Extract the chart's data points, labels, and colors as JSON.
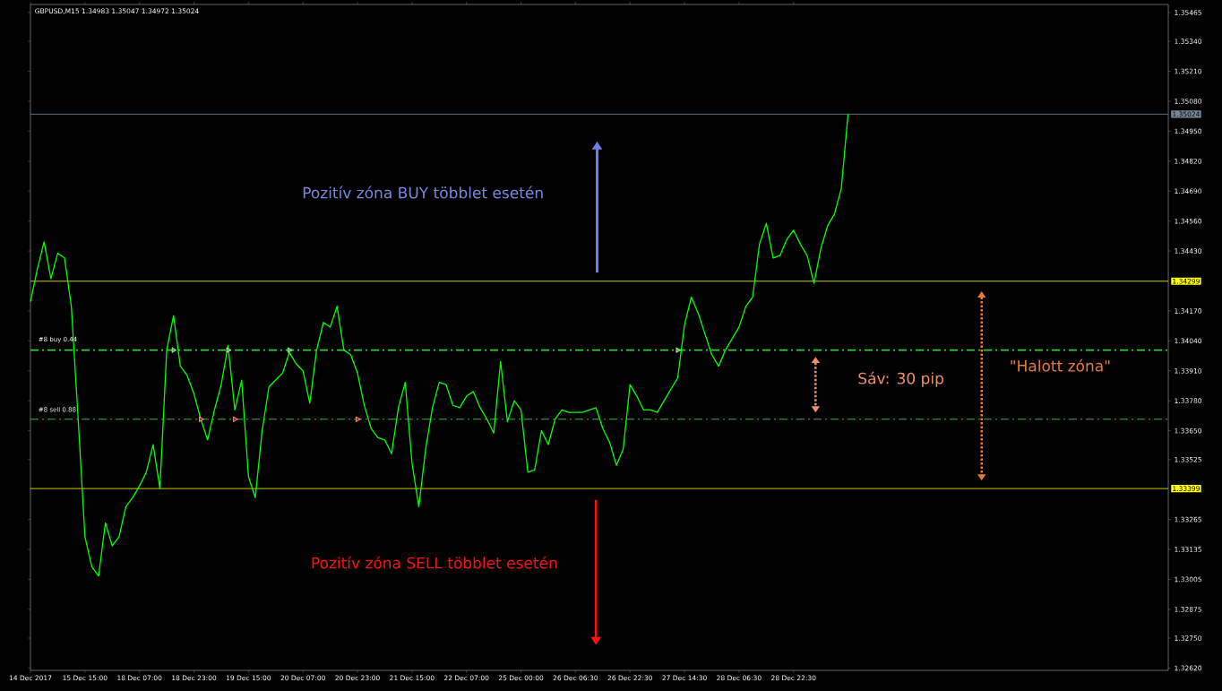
{
  "chart_data": {
    "type": "line",
    "title": "GBPUSD,M15  1.34983 1.35047 1.34972 1.35024",
    "categories": [
      "14 Dec 2017",
      null,
      null,
      null,
      null,
      null,
      null,
      null,
      "15 Dec 15:00",
      null,
      null,
      null,
      null,
      null,
      null,
      null,
      "18 Dec 07:00",
      null,
      null,
      null,
      null,
      null,
      null,
      null,
      "18 Dec 23:00",
      null,
      null,
      null,
      null,
      null,
      null,
      null,
      "19 Dec 15:00",
      null,
      null,
      null,
      null,
      null,
      null,
      null,
      "20 Dec 07:00",
      null,
      null,
      null,
      null,
      null,
      null,
      null,
      "20 Dec 23:00",
      null,
      null,
      null,
      null,
      null,
      null,
      null,
      "21 Dec 15:00",
      null,
      null,
      null,
      null,
      null,
      null,
      null,
      "22 Dec 07:00",
      null,
      null,
      null,
      null,
      null,
      null,
      null,
      "25 Dec 00:00",
      null,
      null,
      null,
      null,
      null,
      null,
      null,
      "26 Dec 06:30",
      null,
      null,
      null,
      null,
      null,
      null,
      null,
      "26 Dec 22:30",
      null,
      null,
      null,
      null,
      null,
      null,
      null,
      "27 Dec 14:30",
      null,
      null,
      null,
      null,
      null,
      null,
      null,
      "28 Dec 06:30",
      null,
      null,
      null,
      null,
      null,
      null,
      null,
      "28 Dec 22:30",
      null,
      null,
      null,
      null,
      null,
      null,
      null,
      null,
      null,
      null,
      null,
      null,
      null,
      null,
      null,
      null,
      null,
      null,
      null,
      null,
      null,
      null,
      null,
      null,
      null,
      null,
      null,
      null,
      null,
      null,
      null,
      null,
      null,
      null,
      null,
      null,
      null,
      null,
      null,
      null,
      null,
      null,
      null,
      null,
      null,
      null,
      null,
      null,
      null,
      null,
      null,
      null,
      null,
      null,
      null
    ],
    "series": [
      {
        "color": "#00ff00",
        "values": [
          1.3421,
          1.3435,
          1.3447,
          1.3431,
          1.3442,
          1.344,
          1.3419,
          1.337,
          1.3319,
          1.3306,
          1.3302,
          1.3325,
          1.3315,
          1.3319,
          1.3332,
          1.3336,
          1.3341,
          1.3347,
          1.3359,
          1.334,
          1.34,
          1.3415,
          1.3393,
          1.3389,
          1.3381,
          1.337,
          1.3361,
          1.3374,
          1.3385,
          1.3402,
          1.3374,
          1.3387,
          1.3345,
          1.3336,
          1.3365,
          1.3384,
          1.3387,
          1.339,
          1.3399,
          1.3394,
          1.3391,
          1.3377,
          1.34,
          1.3412,
          1.341,
          1.3419,
          1.34,
          1.3398,
          1.339,
          1.3376,
          1.3366,
          1.3362,
          1.3361,
          1.3355,
          1.3375,
          1.3386,
          1.3351,
          1.3332,
          1.3357,
          1.3375,
          1.3386,
          1.3385,
          1.3376,
          1.3375,
          1.338,
          1.3382,
          1.3375,
          1.337,
          1.3364,
          1.3395,
          1.3369,
          1.3378,
          1.3374,
          1.3347,
          1.3348,
          1.3365,
          1.3359,
          1.337,
          1.3374,
          1.3373,
          1.3373,
          1.3373,
          1.3374,
          1.3375,
          1.3366,
          1.336,
          1.335,
          1.3357,
          1.3385,
          1.338,
          1.3374,
          1.3374,
          1.3373,
          1.3378,
          1.3383,
          1.3388,
          1.3411,
          1.3423,
          1.3416,
          1.3407,
          1.3398,
          1.3393,
          1.34,
          1.3405,
          1.341,
          1.3419,
          1.3423,
          1.3446,
          1.3455,
          1.344,
          1.3441,
          1.3448,
          1.3452,
          1.3446,
          1.3441,
          1.3429,
          1.3444,
          1.3454,
          1.3459,
          1.347,
          1.35024,
          null,
          null,
          null,
          null,
          null,
          null,
          null,
          null,
          null,
          null,
          null,
          null,
          null,
          null,
          null,
          null,
          null,
          null,
          null,
          null,
          null,
          null,
          null,
          null,
          null,
          null,
          null,
          null,
          null,
          null,
          null,
          null,
          null,
          null,
          null,
          null,
          null,
          null,
          null,
          null,
          null,
          null,
          null,
          null,
          null,
          null,
          null
        ]
      },
      {
        "type": "scatter",
        "marker": "triangle",
        "color": "#32cd32",
        "values": [
          null,
          null,
          null,
          null,
          null,
          null,
          null,
          null,
          null,
          null,
          null,
          null,
          null,
          null,
          null,
          null,
          null,
          null,
          null,
          null,
          null,
          1.34,
          null,
          null,
          null,
          null,
          null,
          null,
          null,
          1.34,
          null,
          null,
          null,
          null,
          null,
          null,
          null,
          null,
          1.34,
          null,
          null,
          null,
          null,
          null,
          null,
          null,
          null,
          null,
          null,
          null,
          null,
          null,
          null,
          null,
          null,
          null,
          null,
          null,
          null,
          null,
          null,
          null,
          null,
          null,
          null,
          null,
          null,
          null,
          null,
          null,
          null,
          null,
          null,
          null,
          null,
          null,
          null,
          null,
          null,
          null,
          null,
          null,
          null,
          null,
          null,
          null,
          null,
          null,
          null,
          null,
          null,
          null,
          null,
          null,
          null,
          1.34,
          null,
          null,
          null,
          null,
          null,
          null,
          null,
          null,
          null,
          null,
          null,
          null,
          null,
          null,
          null,
          null,
          null,
          null,
          null,
          null,
          null,
          null,
          null,
          null,
          null,
          null,
          null,
          null,
          null,
          null,
          null,
          null,
          null,
          null,
          null,
          null,
          null,
          null,
          null,
          null,
          null,
          null,
          null,
          null,
          null,
          null,
          null,
          null,
          null,
          null,
          null,
          null,
          null,
          null,
          null,
          null,
          null,
          null,
          null,
          null,
          null,
          null,
          null,
          null,
          null,
          null,
          null,
          null,
          null,
          null,
          null,
          null
        ]
      },
      {
        "type": "scatter",
        "marker": "triangle",
        "color": "#ff0000",
        "values": [
          null,
          null,
          null,
          null,
          null,
          null,
          null,
          null,
          null,
          null,
          null,
          null,
          null,
          null,
          null,
          null,
          null,
          null,
          null,
          null,
          null,
          null,
          null,
          null,
          null,
          1.337,
          null,
          null,
          null,
          null,
          1.337,
          null,
          null,
          null,
          null,
          null,
          null,
          null,
          null,
          null,
          null,
          null,
          null,
          null,
          null,
          null,
          null,
          null,
          1.337,
          null,
          null,
          null,
          null,
          null,
          null,
          null,
          null,
          null,
          null,
          null,
          null,
          null,
          null,
          null,
          null,
          null,
          null,
          null,
          null,
          null,
          null,
          null,
          null,
          null,
          null,
          null,
          null,
          null,
          null,
          null,
          null,
          null,
          null,
          null,
          null,
          null,
          null,
          null,
          null,
          null,
          null,
          null,
          null,
          null,
          null,
          null,
          null,
          null,
          null,
          null,
          null,
          null,
          null,
          null,
          null,
          null,
          null,
          null,
          null,
          null,
          null,
          null,
          null,
          null,
          null,
          null,
          null,
          null,
          null,
          null,
          null,
          null,
          null,
          null,
          null,
          null,
          null,
          null,
          null,
          null,
          null,
          null,
          null,
          null,
          null,
          null,
          null,
          null,
          null,
          null,
          null,
          null,
          null,
          null,
          null,
          null,
          null,
          null,
          null,
          null,
          null,
          null,
          null,
          null,
          null,
          null,
          null,
          null,
          null,
          null,
          null,
          null,
          null,
          null,
          null,
          null,
          null,
          null
        ]
      }
    ],
    "ylim": [
      1.3261,
      1.355
    ],
    "yticks": [
      {
        "value": 1.35465,
        "label": "1.35465"
      },
      {
        "value": 1.3534,
        "label": "1.35340"
      },
      {
        "value": 1.3521,
        "label": "1.35210"
      },
      {
        "value": 1.3508,
        "label": "1.35080"
      },
      {
        "value": 1.3495,
        "label": "1.34950"
      },
      {
        "value": 1.3482,
        "label": "1.34820"
      },
      {
        "value": 1.3469,
        "label": "1.34690"
      },
      {
        "value": 1.3456,
        "label": "1.34560"
      },
      {
        "value": 1.3443,
        "label": "1.34430"
      },
      {
        "value": 1.3417,
        "label": "1.34170"
      },
      {
        "value": 1.3404,
        "label": "1.34040"
      },
      {
        "value": 1.3391,
        "label": "1.33910"
      },
      {
        "value": 1.3378,
        "label": "1.33780"
      },
      {
        "value": 1.3365,
        "label": "1.33650"
      },
      {
        "value": 1.33525,
        "label": "1.33525"
      },
      {
        "value": 1.33265,
        "label": "1.33265"
      },
      {
        "value": 1.33135,
        "label": "1.33135"
      },
      {
        "value": 1.33005,
        "label": "1.33005"
      },
      {
        "value": 1.32875,
        "label": "1.32875"
      },
      {
        "value": 1.3275,
        "label": "1.32750"
      },
      {
        "value": 1.3262,
        "label": "1.32620"
      }
    ],
    "ref_lines": [
      {
        "axis": "y",
        "value": 1.35024,
        "label": "1.35024",
        "color": "#778899"
      },
      {
        "axis": "y",
        "value": 1.34299,
        "label": "1.34299",
        "color": "#ffff00"
      },
      {
        "axis": "y",
        "value": 1.33399,
        "label": "1.33399",
        "color": "#ffff00"
      },
      {
        "axis": "y",
        "value": 1.34,
        "label": "#8 buy 0.44",
        "color": "#32cd32",
        "line_style": "dashed"
      },
      {
        "axis": "y",
        "value": 1.337,
        "label": "#8 sell 0.88",
        "color": "#32cd32",
        "line_style": "dashed"
      }
    ],
    "annotations": [
      "Pozitív zóna BUY többlet esetén",
      "Pozitív zóna SELL többlet esetén",
      "Sáv: 30 pip",
      "\"Halott zóna\""
    ],
    "grid": false
  }
}
